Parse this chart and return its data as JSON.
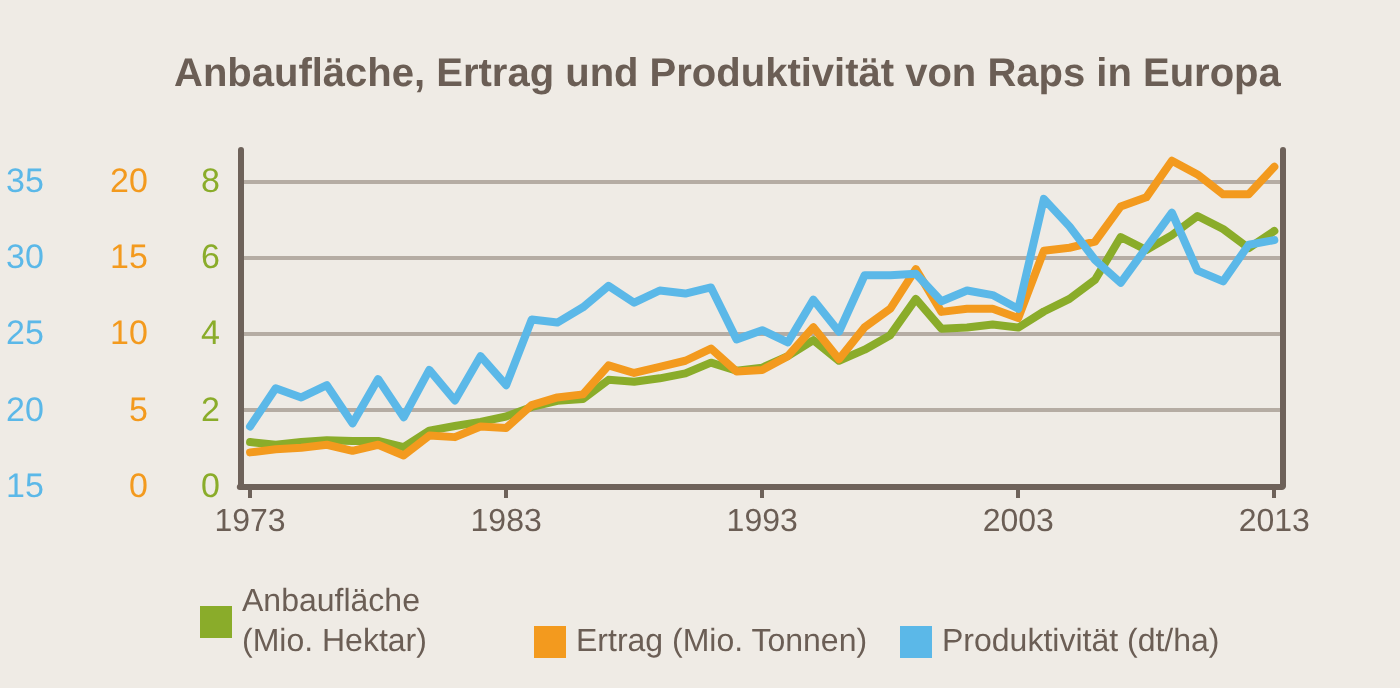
{
  "chart_data": {
    "type": "line",
    "title": "Anbaufläche, Ertrag und Produktivität von Raps in Europa",
    "x": [
      1973,
      1974,
      1975,
      1976,
      1977,
      1978,
      1979,
      1980,
      1981,
      1982,
      1983,
      1984,
      1985,
      1986,
      1987,
      1988,
      1989,
      1990,
      1991,
      1992,
      1993,
      1994,
      1995,
      1996,
      1997,
      1998,
      1999,
      2000,
      2001,
      2002,
      2003,
      2004,
      2005,
      2006,
      2007,
      2008,
      2009,
      2010,
      2011,
      2012,
      2013
    ],
    "series": [
      {
        "name": "Anbaufläche (Mio. Hektar)",
        "color": "#8aac2a",
        "axis": "y",
        "values": [
          1.15,
          1.08,
          1.15,
          1.2,
          1.18,
          1.18,
          1.02,
          1.45,
          1.57,
          1.68,
          1.82,
          2.07,
          2.23,
          2.28,
          2.78,
          2.73,
          2.82,
          2.95,
          3.23,
          3.02,
          3.1,
          3.4,
          3.82,
          3.28,
          3.57,
          3.95,
          4.9,
          4.12,
          4.15,
          4.23,
          4.15,
          4.57,
          4.9,
          5.4,
          6.52,
          6.18,
          6.57,
          7.07,
          6.73,
          6.23,
          6.68
        ]
      },
      {
        "name": "Ertrag (Mio. Tonnen)",
        "color": "#f39a1e",
        "axis": "y2",
        "values": [
          2.2,
          2.4,
          2.5,
          2.7,
          2.3,
          2.7,
          2.0,
          3.3,
          3.2,
          3.9,
          3.8,
          5.3,
          5.8,
          6.0,
          7.9,
          7.4,
          7.8,
          8.2,
          9.0,
          7.5,
          7.6,
          8.5,
          10.4,
          8.3,
          10.4,
          11.6,
          14.2,
          11.4,
          11.6,
          11.6,
          11.0,
          15.4,
          15.6,
          16.0,
          18.3,
          18.9,
          21.3,
          20.4,
          19.1,
          19.1,
          20.9
        ]
      },
      {
        "name": "Produktivität (dt/ha)",
        "color": "#5bb8e8",
        "axis": "y3",
        "values": [
          18.9,
          21.4,
          20.8,
          21.6,
          19.1,
          22.0,
          19.5,
          22.6,
          20.6,
          23.5,
          21.6,
          25.9,
          25.7,
          26.7,
          28.1,
          27.0,
          27.8,
          27.6,
          28.0,
          24.6,
          25.2,
          24.4,
          27.2,
          25.1,
          28.8,
          28.8,
          28.9,
          27.1,
          27.8,
          27.5,
          26.6,
          33.8,
          32.0,
          29.8,
          28.3,
          30.6,
          32.9,
          29.1,
          28.4,
          30.8,
          31.1
        ]
      }
    ],
    "xlim": [
      1972.6,
      2013.3
    ],
    "xticks": [
      1973,
      1983,
      1993,
      2003,
      2013
    ],
    "ylim": [
      0,
      8.8
    ],
    "yticks": [
      0,
      2,
      4,
      6,
      8
    ],
    "y2lim": [
      0,
      22
    ],
    "y2ticks": [
      0,
      5,
      10,
      15,
      20
    ],
    "y3lim": [
      15,
      37
    ],
    "y3ticks": [
      15,
      20,
      25,
      30,
      35
    ],
    "grid": "y",
    "legend": "bottom",
    "marker": "none",
    "line_style": "solid"
  }
}
